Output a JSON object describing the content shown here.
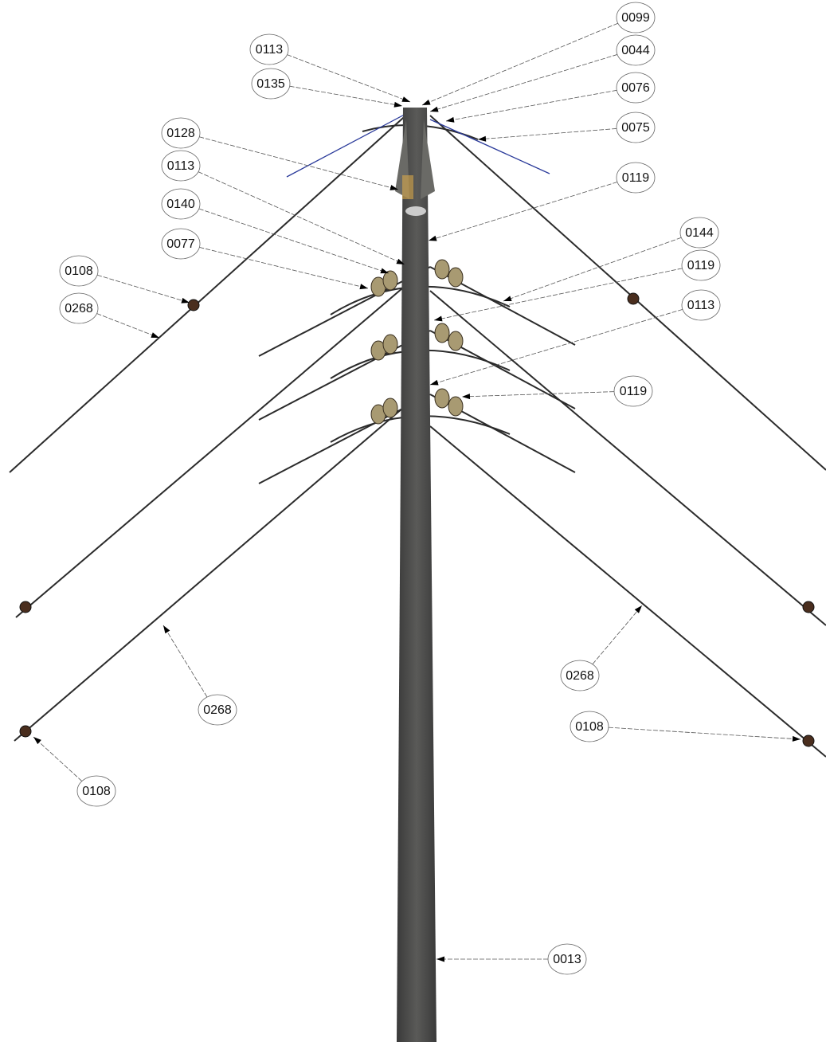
{
  "callouts": [
    "0099",
    "0113",
    "0044",
    "0135",
    "0076",
    "0075",
    "0128",
    "0113",
    "0119",
    "0140",
    "0144",
    "0077",
    "0119",
    "0108",
    "0113",
    "0268",
    "0119",
    "0268",
    "0268",
    "0108",
    "0108",
    "0013"
  ]
}
